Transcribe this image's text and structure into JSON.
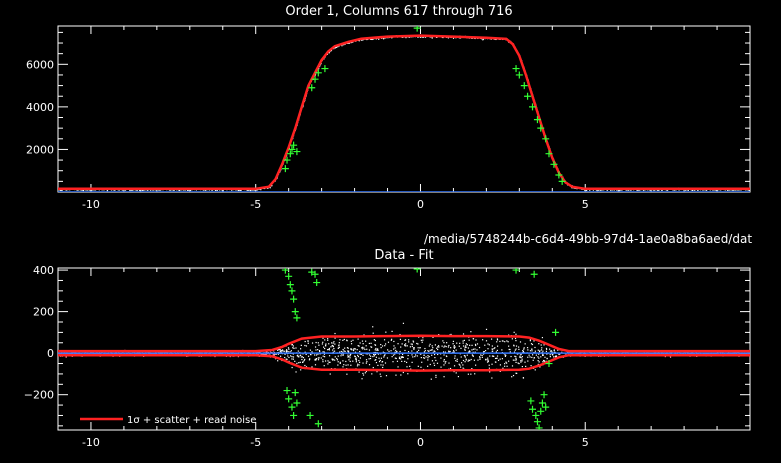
{
  "colors": {
    "background": "#000000",
    "axes": "#ffffff",
    "fit": "#ff2222",
    "baseline": "#3377ff",
    "rejected": "#33ff33",
    "data_points": "#ffffff"
  },
  "file_path": "/media/5748244b-c6d4-49bb-97d4-1ae0a8ba6aed/dat",
  "chart_data": [
    {
      "type": "scatter",
      "title": "Order 1, Columns 617 through 716",
      "xlim": [
        -11,
        10
      ],
      "ylim": [
        0,
        7800
      ],
      "xticks": [
        -10,
        -5,
        0,
        5
      ],
      "yticks": [
        2000,
        4000,
        6000
      ],
      "grid": false,
      "series": [
        {
          "role": "fit",
          "color": "#ff2222",
          "x": [
            -11,
            -5,
            -4.6,
            -4.4,
            -4.2,
            -4.0,
            -3.8,
            -3.6,
            -3.4,
            -3.2,
            -3.0,
            -2.8,
            -2.6,
            -2.2,
            -1.8,
            -1,
            0,
            1,
            2,
            2.6,
            2.8,
            3.0,
            3.2,
            3.4,
            3.6,
            3.8,
            4.0,
            4.2,
            4.4,
            4.6,
            5,
            10
          ],
          "y": [
            150,
            150,
            250,
            600,
            1300,
            2100,
            3000,
            4000,
            5000,
            5600,
            6200,
            6600,
            6850,
            7050,
            7200,
            7300,
            7350,
            7300,
            7250,
            7200,
            6950,
            6400,
            5500,
            4500,
            3500,
            2500,
            1600,
            900,
            450,
            250,
            150,
            150
          ]
        },
        {
          "role": "baseline",
          "color": "#3377ff",
          "x": [
            -11,
            10
          ],
          "y": [
            0,
            0
          ]
        },
        {
          "role": "rejected",
          "color": "#33ff33",
          "x": [
            -4.1,
            -4.05,
            -3.95,
            -3.9,
            -3.85,
            -3.75,
            -3.3,
            -3.2,
            -3.1,
            -2.9,
            -0.1,
            2.9,
            3.0,
            3.15,
            3.25,
            3.4,
            3.55,
            3.65,
            3.8,
            3.9,
            4.05,
            4.2,
            4.3
          ],
          "y": [
            1100,
            1500,
            1800,
            2000,
            2200,
            1900,
            4900,
            5300,
            5600,
            5800,
            7700,
            5800,
            5500,
            5000,
            4500,
            4000,
            3400,
            3000,
            2500,
            1800,
            1300,
            800,
            500
          ]
        }
      ]
    },
    {
      "type": "scatter",
      "title": "Data - Fit",
      "xlim": [
        -11,
        10
      ],
      "ylim": [
        -370,
        410
      ],
      "xticks": [
        -10,
        -5,
        0,
        5
      ],
      "yticks": [
        -200,
        0,
        200,
        400
      ],
      "grid": false,
      "legend": {
        "position": "bottom-left",
        "text": "1σ + scatter + read noise"
      },
      "series": [
        {
          "role": "noise-envelope-upper",
          "color": "#ff2222",
          "x": [
            -11,
            -5,
            -4.5,
            -4.2,
            -4.0,
            -3.6,
            -3.0,
            -2,
            -1,
            0,
            1,
            2,
            3.0,
            3.3,
            3.6,
            3.9,
            4.2,
            4.5,
            5,
            10
          ],
          "y": [
            10,
            10,
            15,
            30,
            45,
            70,
            80,
            80,
            82,
            84,
            82,
            82,
            80,
            75,
            60,
            40,
            20,
            10,
            10,
            10
          ]
        },
        {
          "role": "noise-envelope-lower",
          "color": "#ff2222",
          "x": [
            -11,
            -5,
            -4.5,
            -4.2,
            -4.0,
            -3.6,
            -3.0,
            -2,
            -1,
            0,
            1,
            2,
            3.0,
            3.3,
            3.6,
            3.9,
            4.2,
            4.5,
            5,
            10
          ],
          "y": [
            -10,
            -10,
            -15,
            -30,
            -45,
            -70,
            -80,
            -80,
            -82,
            -84,
            -82,
            -82,
            -80,
            -75,
            -60,
            -40,
            -20,
            -10,
            -10,
            -10
          ]
        },
        {
          "role": "baseline",
          "color": "#3377ff",
          "x": [
            -11,
            10
          ],
          "y": [
            0,
            0
          ]
        },
        {
          "role": "rejected",
          "color": "#33ff33",
          "x": [
            -4.1,
            -4.0,
            -3.95,
            -3.9,
            -3.85,
            -3.8,
            -3.75,
            -3.3,
            -3.2,
            -3.15,
            -4.05,
            -4.0,
            -3.9,
            -3.85,
            -3.8,
            -3.75,
            -3.35,
            -3.1,
            -0.1,
            2.9,
            3.35,
            3.4,
            3.5,
            3.55,
            3.6,
            3.65,
            3.7,
            3.75,
            3.8,
            3.45,
            4.1,
            3.9
          ],
          "y": [
            400,
            370,
            330,
            300,
            260,
            200,
            170,
            390,
            380,
            340,
            -180,
            -220,
            -260,
            -300,
            -190,
            -240,
            -300,
            -340,
            405,
            400,
            -230,
            -270,
            -300,
            -330,
            -360,
            -280,
            -240,
            -200,
            -260,
            380,
            100,
            -50
          ]
        }
      ]
    }
  ]
}
